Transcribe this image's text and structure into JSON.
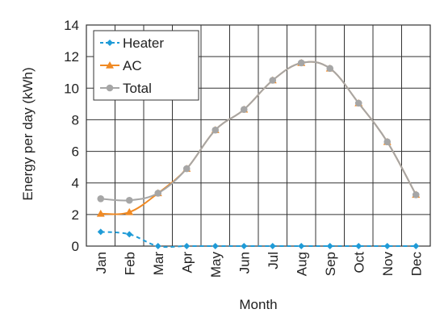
{
  "chart_data": {
    "type": "line",
    "title": "",
    "xlabel": "Month",
    "ylabel": "Energy per day (kWh)",
    "categories": [
      "Jan",
      "Feb",
      "Mar",
      "Apr",
      "May",
      "Jun",
      "Jul",
      "Aug",
      "Sep",
      "Oct",
      "Nov",
      "Dec"
    ],
    "ylim": [
      0,
      14
    ],
    "yticks": [
      0,
      2,
      4,
      6,
      8,
      10,
      12,
      14
    ],
    "grid": true,
    "legend": "top-left",
    "series": [
      {
        "name": "Heater",
        "values": [
          0.9,
          0.75,
          0,
          0,
          0,
          0,
          0,
          0,
          0,
          0,
          0,
          0
        ],
        "color": "#1f9bd7",
        "dash": "dashed",
        "marker": "diamond"
      },
      {
        "name": "AC",
        "values": [
          2.05,
          2.15,
          3.35,
          4.9,
          7.35,
          8.65,
          10.5,
          11.6,
          11.25,
          9.05,
          6.6,
          3.25
        ],
        "color": "#f08a24",
        "dash": "solid",
        "marker": "triangle"
      },
      {
        "name": "Total",
        "values": [
          3.0,
          2.9,
          3.35,
          4.9,
          7.35,
          8.65,
          10.5,
          11.6,
          11.25,
          9.05,
          6.6,
          3.25
        ],
        "color": "#a6a6a6",
        "dash": "solid",
        "marker": "circle"
      }
    ]
  }
}
